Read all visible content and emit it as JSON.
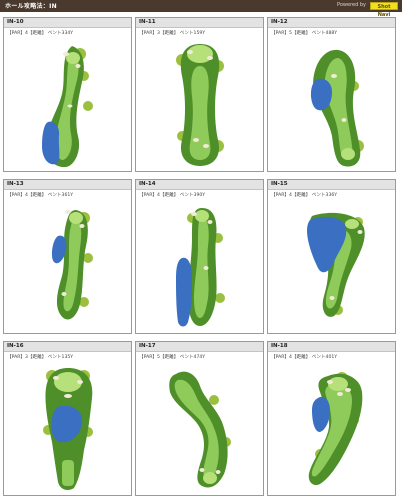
{
  "header": {
    "title": "ホール攻略法：IN",
    "powered_by": "Powered by",
    "brand": "Shot Navi"
  },
  "holes": [
    {
      "label": "IN-10",
      "info": "【PAR】4【距離】 ベント334Y"
    },
    {
      "label": "IN-11",
      "info": "【PAR】3【距離】 ベント159Y"
    },
    {
      "label": "IN-12",
      "info": "【PAR】5【距離】 ベント488Y"
    },
    {
      "label": "IN-13",
      "info": "【PAR】4【距離】 ベント361Y"
    },
    {
      "label": "IN-14",
      "info": "【PAR】4【距離】 ベント390Y"
    },
    {
      "label": "IN-15",
      "info": "【PAR】4【距離】 ベント336Y"
    },
    {
      "label": "IN-16",
      "info": "【PAR】3【距離】 ベント135Y"
    },
    {
      "label": "IN-17",
      "info": "【PAR】5【距離】 ベント474Y"
    },
    {
      "label": "IN-18",
      "info": "【PAR】4【距離】 ベント401Y"
    }
  ],
  "colors": {
    "rough": "#4f8f2a",
    "fairway": "#8fcb5a",
    "green": "#b6e07a",
    "water": "#3a6fc2",
    "sand": "#f1ead6",
    "trees": "#9bbf3e"
  }
}
